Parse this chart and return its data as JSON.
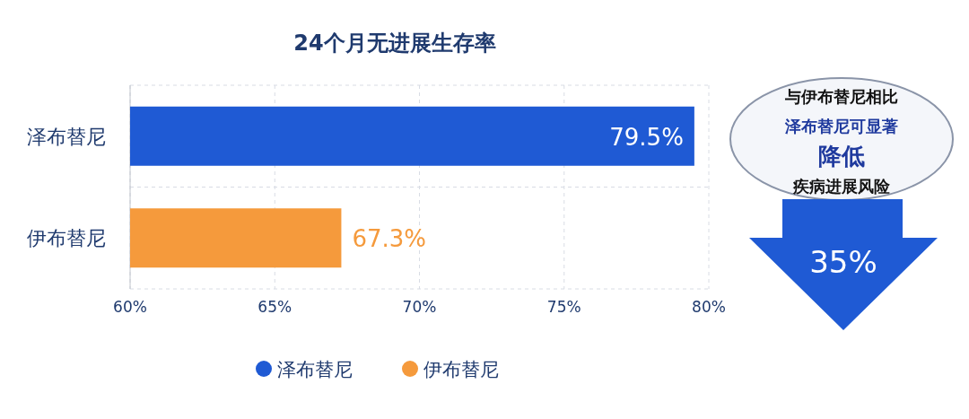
{
  "chart_data": {
    "type": "bar",
    "orientation": "horizontal",
    "title": "24个月无进展生存率",
    "categories": [
      "泽布替尼",
      "伊布替尼"
    ],
    "series": [
      {
        "name": "泽布替尼",
        "color": "#1f5ad4",
        "values": [
          79.5,
          null
        ]
      },
      {
        "name": "伊布替尼",
        "color": "#f59a3c",
        "values": [
          null,
          67.3
        ]
      }
    ],
    "xlim": [
      60,
      80
    ],
    "xticks": [
      {
        "value": 60,
        "label": "60%"
      },
      {
        "value": 65,
        "label": "65%"
      },
      {
        "value": 70,
        "label": "70%"
      },
      {
        "value": 75,
        "label": "75%"
      },
      {
        "value": 80,
        "label": "80%"
      }
    ],
    "value_labels": [
      "79.5%",
      "67.3%"
    ],
    "grid": true,
    "legend": "bottom",
    "annotations": [
      "与伊布替尼相比",
      "泽布替尼可显著",
      "降低",
      "疾病进展风险",
      "35%"
    ]
  }
}
